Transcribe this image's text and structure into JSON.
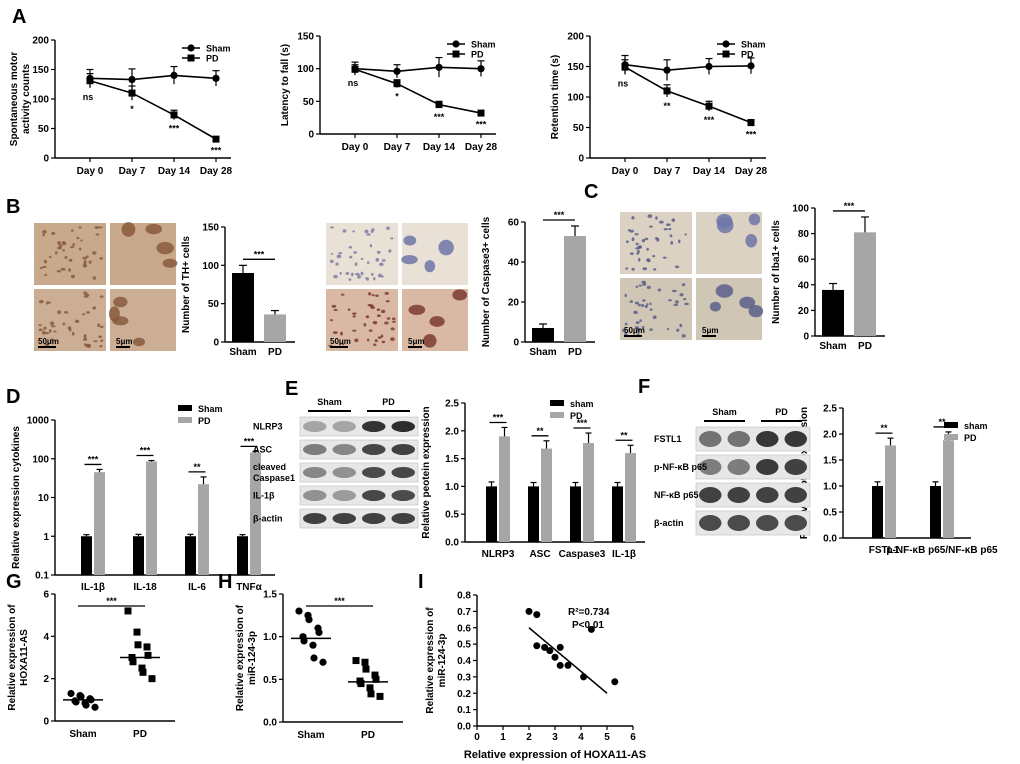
{
  "panels": [
    {
      "letter": "A"
    },
    {
      "letter": "B"
    },
    {
      "letter": "C"
    },
    {
      "letter": "D"
    },
    {
      "letter": "E"
    },
    {
      "letter": "F"
    },
    {
      "letter": "G"
    },
    {
      "letter": "H"
    },
    {
      "letter": "I"
    }
  ],
  "colors": {
    "sham": "#000000",
    "pd": "#a6a6a6"
  },
  "chart_data": [
    {
      "id": "A1",
      "type": "line",
      "ylabel": "Spontaneous motor\nactivity counts",
      "categories": [
        "Day 0",
        "Day 7",
        "Day 14",
        "Day 28"
      ],
      "ylim": [
        0,
        200
      ],
      "yticks": [
        0,
        50,
        100,
        150,
        200
      ],
      "series": [
        {
          "name": "Sham",
          "marker": "circle",
          "values": [
            135,
            133,
            140,
            135
          ],
          "err": [
            15,
            18,
            15,
            13
          ]
        },
        {
          "name": "PD",
          "marker": "square",
          "values": [
            131,
            110,
            73,
            32
          ],
          "err": [
            12,
            12,
            8,
            4
          ]
        }
      ],
      "annotations": [
        "ns",
        "*",
        "***",
        "***"
      ]
    },
    {
      "id": "A2",
      "type": "line",
      "ylabel": "Latency to fall (s)",
      "categories": [
        "Day 0",
        "Day 7",
        "Day 14",
        "Day 28"
      ],
      "ylim": [
        0,
        150
      ],
      "yticks": [
        0,
        50,
        100,
        150
      ],
      "series": [
        {
          "name": "Sham",
          "marker": "circle",
          "values": [
            100,
            96,
            102,
            100
          ],
          "err": [
            10,
            10,
            15,
            12
          ]
        },
        {
          "name": "PD",
          "marker": "square",
          "values": [
            99,
            77,
            45,
            32
          ],
          "err": [
            7,
            6,
            5,
            4
          ]
        }
      ],
      "annotations": [
        "ns",
        "*",
        "***",
        "***"
      ]
    },
    {
      "id": "A3",
      "type": "line",
      "ylabel": "Retention time (s)",
      "categories": [
        "Day 0",
        "Day 7",
        "Day 14",
        "Day 28"
      ],
      "ylim": [
        0,
        200
      ],
      "yticks": [
        0,
        50,
        100,
        150,
        200
      ],
      "series": [
        {
          "name": "Sham",
          "marker": "circle",
          "values": [
            153,
            144,
            150,
            151
          ],
          "err": [
            15,
            17,
            13,
            13
          ]
        },
        {
          "name": "PD",
          "marker": "square",
          "values": [
            149,
            110,
            85,
            58
          ],
          "err": [
            12,
            10,
            8,
            5
          ]
        }
      ],
      "annotations": [
        "ns",
        "**",
        "***",
        "***"
      ]
    },
    {
      "id": "B1",
      "type": "bar",
      "ylabel": "Number of TH+ cells",
      "categories": [
        "Sham",
        "PD"
      ],
      "values": [
        90,
        36
      ],
      "err": [
        10,
        5
      ],
      "ylim": [
        0,
        150
      ],
      "yticks": [
        0,
        50,
        100,
        150
      ],
      "significance": "***"
    },
    {
      "id": "B2",
      "type": "bar",
      "ylabel": "Number of Caspase3+ cells",
      "categories": [
        "Sham",
        "PD"
      ],
      "values": [
        7,
        53
      ],
      "err": [
        2,
        5
      ],
      "ylim": [
        0,
        60
      ],
      "yticks": [
        0,
        20,
        40,
        60
      ],
      "significance": "***"
    },
    {
      "id": "C1",
      "type": "bar",
      "ylabel": "Number of Iba1+ cells",
      "categories": [
        "Sham",
        "PD"
      ],
      "values": [
        36,
        81
      ],
      "err": [
        5,
        12
      ],
      "ylim": [
        0,
        100
      ],
      "yticks": [
        0,
        20,
        40,
        60,
        80,
        100
      ],
      "significance": "***"
    },
    {
      "id": "D1",
      "type": "bar",
      "ylabel": "Relative expression cytokines",
      "log": true,
      "categories": [
        "IL-1β",
        "IL-18",
        "IL-6",
        "TNFα"
      ],
      "ylim": [
        0.1,
        1000
      ],
      "yticks": [
        "0.1",
        "1",
        "10",
        "100",
        "1000"
      ],
      "series": [
        {
          "name": "Sham",
          "values": [
            1,
            1,
            1,
            1
          ],
          "err": [
            0.1,
            0.12,
            0.12,
            0.1
          ]
        },
        {
          "name": "PD",
          "values": [
            45,
            85,
            22,
            145
          ],
          "err": [
            8,
            5,
            12,
            10
          ]
        }
      ],
      "significance": [
        "***",
        "***",
        "**",
        "***"
      ]
    },
    {
      "id": "E1",
      "type": "bar",
      "ylabel": "Relative peotein expression",
      "categories": [
        "NLRP3",
        "ASC",
        "Caspase3",
        "IL-1β"
      ],
      "ylim": [
        0,
        2.5
      ],
      "yticks": [
        "0.0",
        "0.5",
        "1.0",
        "1.5",
        "2.0",
        "2.5"
      ],
      "series": [
        {
          "name": "sham",
          "values": [
            1.0,
            1.0,
            1.0,
            1.0
          ],
          "err": [
            0.08,
            0.07,
            0.07,
            0.07
          ]
        },
        {
          "name": "PD",
          "values": [
            1.9,
            1.68,
            1.78,
            1.6
          ],
          "err": [
            0.16,
            0.14,
            0.18,
            0.14
          ]
        }
      ],
      "significance": [
        "***",
        "**",
        "***",
        "**"
      ]
    },
    {
      "id": "F1",
      "type": "bar",
      "ylabel": "Relative peotein expression",
      "categories": [
        "FSTL1",
        "p-NF-κB p65/NF-κB p65"
      ],
      "ylim": [
        0,
        2.5
      ],
      "yticks": [
        "0.0",
        "0.5",
        "1.0",
        "1.5",
        "2.0",
        "2.5"
      ],
      "series": [
        {
          "name": "sham",
          "values": [
            1.0,
            1.0
          ],
          "err": [
            0.08,
            0.08
          ]
        },
        {
          "name": "PD",
          "values": [
            1.78,
            1.88
          ],
          "err": [
            0.14,
            0.16
          ]
        }
      ],
      "significance": [
        "**",
        "**"
      ]
    },
    {
      "id": "G1",
      "type": "scatter",
      "ylabel": "Relative expression of\nHOXA11-AS",
      "categories": [
        "Sham",
        "PD"
      ],
      "ylim": [
        0,
        6
      ],
      "yticks": [
        0,
        2,
        4,
        6
      ],
      "significance": "***",
      "groups": [
        {
          "name": "Sham",
          "mean": 1.0,
          "points": [
            1.3,
            1.2,
            1.15,
            1.05,
            1.0,
            0.95,
            0.9,
            0.85,
            0.75,
            0.65
          ]
        },
        {
          "name": "PD",
          "mean": 3.0,
          "points": [
            5.2,
            4.2,
            3.6,
            3.5,
            3.1,
            3.0,
            2.8,
            2.5,
            2.3,
            2.0
          ]
        }
      ]
    },
    {
      "id": "H1",
      "type": "scatter",
      "ylabel": "Relative expression of\nmiR-124-3p",
      "categories": [
        "Sham",
        "PD"
      ],
      "ylim": [
        0,
        1.5
      ],
      "yticks": [
        "0.0",
        "0.5",
        "1.0",
        "1.5"
      ],
      "significance": "***",
      "groups": [
        {
          "name": "Sham",
          "mean": 0.98,
          "points": [
            1.3,
            1.25,
            1.2,
            1.1,
            1.05,
            1.0,
            0.95,
            0.9,
            0.75,
            0.7
          ]
        },
        {
          "name": "PD",
          "mean": 0.47,
          "points": [
            0.72,
            0.7,
            0.62,
            0.55,
            0.5,
            0.48,
            0.45,
            0.4,
            0.33,
            0.3
          ]
        }
      ]
    },
    {
      "id": "I1",
      "type": "scatter",
      "xlabel": "Relative expression of HOXA11-AS",
      "ylabel": "Relative expression of\nmiR-124-3p",
      "xlim": [
        0,
        6
      ],
      "xticks": [
        0,
        1,
        2,
        3,
        4,
        5,
        6
      ],
      "ylim": [
        0,
        0.8
      ],
      "yticks": [
        "0.0",
        "0.1",
        "0.2",
        "0.3",
        "0.4",
        "0.5",
        "0.6",
        "0.7",
        "0.8"
      ],
      "points": [
        [
          2.0,
          0.7
        ],
        [
          2.3,
          0.68
        ],
        [
          2.3,
          0.49
        ],
        [
          2.6,
          0.48
        ],
        [
          2.8,
          0.46
        ],
        [
          3.0,
          0.42
        ],
        [
          3.2,
          0.48
        ],
        [
          3.2,
          0.37
        ],
        [
          3.5,
          0.37
        ],
        [
          4.1,
          0.3
        ],
        [
          4.4,
          0.59
        ],
        [
          5.3,
          0.27
        ]
      ],
      "fit": [
        [
          2.0,
          0.6
        ],
        [
          5.0,
          0.2
        ]
      ],
      "r2": "R²=0.734",
      "p": "P<0.01"
    }
  ],
  "blots": [
    {
      "id": "E",
      "groups": [
        "Sham",
        "PD"
      ],
      "lanes_per_group": 2,
      "rows": [
        {
          "label": "NLRP3",
          "int": [
            0.35,
            0.35,
            0.92,
            0.95
          ]
        },
        {
          "label": "ASC",
          "int": [
            0.55,
            0.5,
            0.82,
            0.85
          ]
        },
        {
          "label": "cleaved\nCaspase1",
          "int": [
            0.5,
            0.45,
            0.8,
            0.82
          ]
        },
        {
          "label": "IL-1β",
          "int": [
            0.45,
            0.4,
            0.82,
            0.8
          ]
        },
        {
          "label": "β-actin",
          "int": [
            0.85,
            0.85,
            0.85,
            0.85
          ]
        }
      ]
    },
    {
      "id": "F",
      "groups": [
        "Sham",
        "PD"
      ],
      "lanes_per_group": 2,
      "rows": [
        {
          "label": "FSTL1",
          "int": [
            0.6,
            0.6,
            0.9,
            0.9
          ]
        },
        {
          "label": "p-NF-κB p65",
          "int": [
            0.55,
            0.55,
            0.88,
            0.85
          ]
        },
        {
          "label": "NF-κB p65",
          "int": [
            0.85,
            0.85,
            0.85,
            0.85
          ]
        },
        {
          "label": "β-actin",
          "int": [
            0.8,
            0.8,
            0.8,
            0.8
          ]
        }
      ]
    }
  ],
  "micrographs": [
    {
      "id": "B-TH",
      "scale_big": "50μm",
      "scale_small": "5μm",
      "style": "th"
    },
    {
      "id": "B-Casp",
      "scale_big": "50μm",
      "scale_small": "5μm",
      "style": "casp"
    },
    {
      "id": "C-Iba",
      "scale_big": "50μm",
      "scale_small": "5μm",
      "style": "iba"
    }
  ]
}
